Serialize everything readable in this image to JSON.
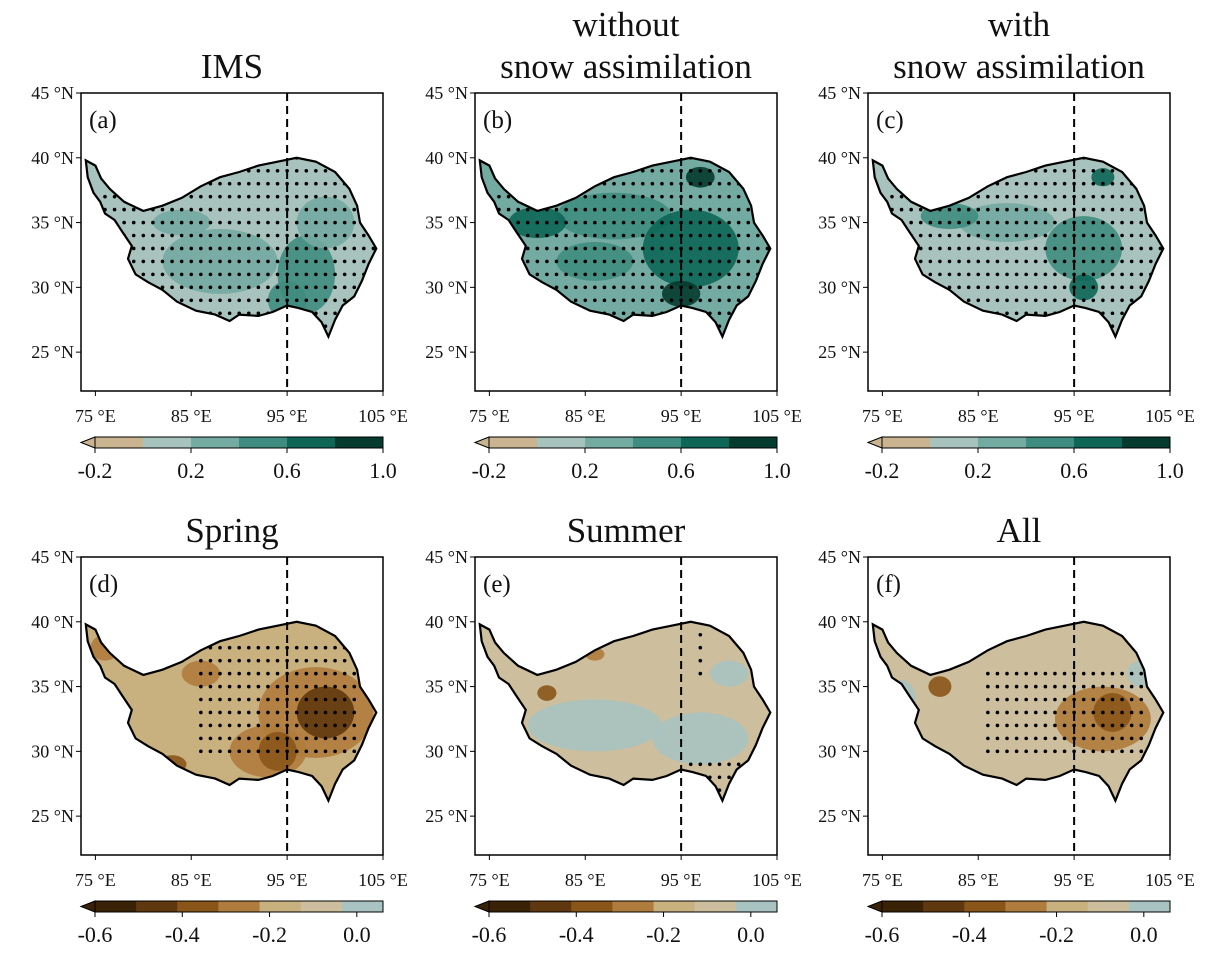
{
  "panels": [
    {
      "title_lines": [
        "IMS"
      ],
      "label": "(a)",
      "colorbar": "top"
    },
    {
      "title_lines": [
        "without",
        "snow assimilation"
      ],
      "label": "(b)",
      "colorbar": "top"
    },
    {
      "title_lines": [
        "with",
        "snow assimilation"
      ],
      "label": "(c)",
      "colorbar": "top"
    },
    {
      "title_lines": [
        "Spring"
      ],
      "label": "(d)",
      "colorbar": "bottom"
    },
    {
      "title_lines": [
        "Summer"
      ],
      "label": "(e)",
      "colorbar": "bottom"
    },
    {
      "title_lines": [
        "All"
      ],
      "label": "(f)",
      "colorbar": "bottom"
    }
  ],
  "xlim": [
    73.5,
    105
  ],
  "ylim": [
    22,
    45
  ],
  "lon_ticks": [
    {
      "value": 75,
      "label": "75 °E"
    },
    {
      "value": 85,
      "label": "85 °E"
    },
    {
      "value": 95,
      "label": "95 °E"
    },
    {
      "value": 105,
      "label": "105 °E"
    }
  ],
  "lat_ticks": [
    {
      "value": 45,
      "label": "45 °N"
    },
    {
      "value": 40,
      "label": "40 °N"
    },
    {
      "value": 35,
      "label": "35 °N"
    },
    {
      "value": 30,
      "label": "30 °N"
    },
    {
      "value": 25,
      "label": "25 °N"
    }
  ],
  "dashed_meridian": 95,
  "colorbars": {
    "top": {
      "lim": [
        -0.2,
        1.0
      ],
      "extend": "min",
      "colors": [
        "#c9b48f",
        "#a8c3bd",
        "#73aaa1",
        "#3f8d80",
        "#0d6656",
        "#053a2e"
      ],
      "ticks": [
        {
          "value": -0.2,
          "label": "-0.2"
        },
        {
          "value": 0.2,
          "label": "0.2"
        },
        {
          "value": 0.6,
          "label": "0.6"
        },
        {
          "value": 1.0,
          "label": "1.0"
        }
      ]
    },
    "bottom": {
      "lim": [
        -0.6,
        0.06
      ],
      "extend": "min",
      "colors": [
        "#3a2207",
        "#5f3810",
        "#8a5519",
        "#b07c3d",
        "#c9b07f",
        "#cdbf9d",
        "#a8c3c1"
      ],
      "ticks": [
        {
          "value": -0.6,
          "label": "-0.6"
        },
        {
          "value": -0.4,
          "label": "-0.4"
        },
        {
          "value": -0.2,
          "label": "-0.2"
        },
        {
          "value": 0.0,
          "label": "0.0"
        }
      ]
    }
  }
}
